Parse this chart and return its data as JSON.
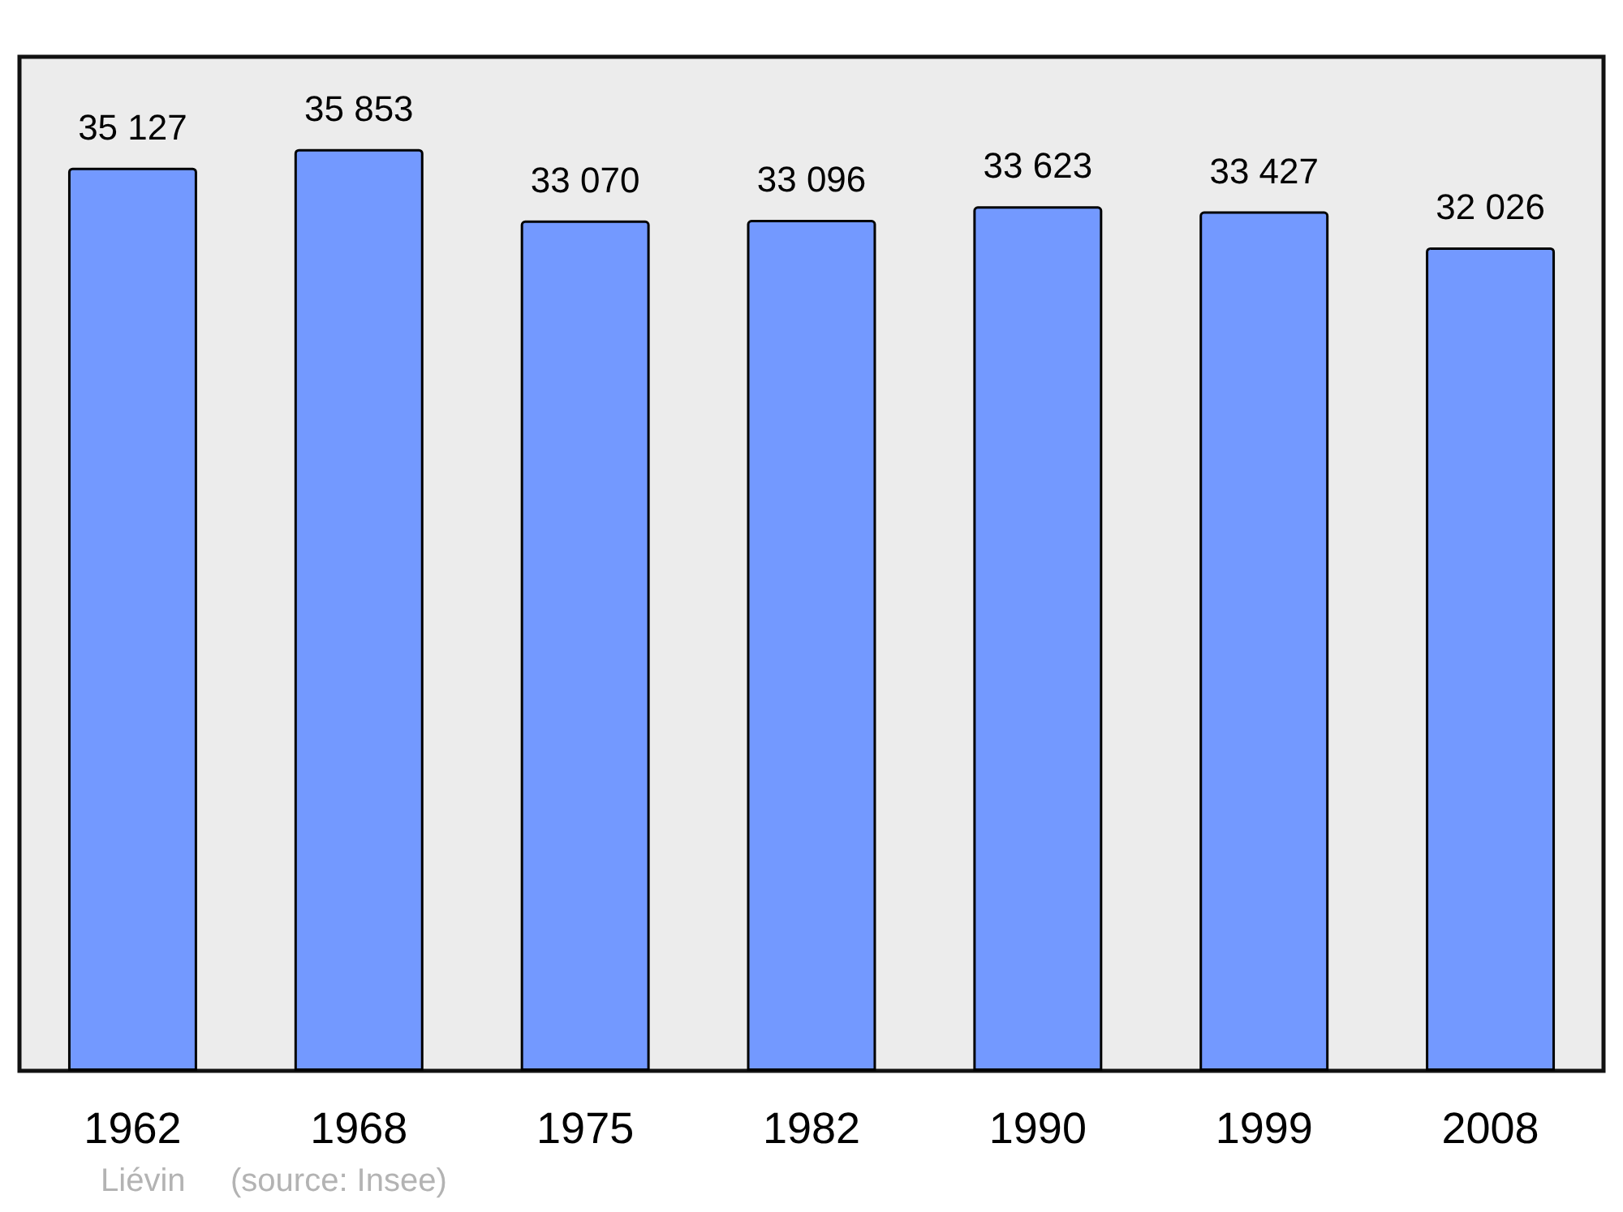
{
  "chart_data": {
    "type": "bar",
    "categories": [
      "1962",
      "1968",
      "1975",
      "1982",
      "1990",
      "1999",
      "2008"
    ],
    "values": [
      35127,
      35853,
      33070,
      33096,
      33623,
      33427,
      32026
    ],
    "value_labels": [
      "35 127",
      "35 853",
      "33 070",
      "33 096",
      "33 623",
      "33 427",
      "32 026"
    ],
    "color": "#7399ff",
    "annotations": [
      "Liévin",
      "(source: Insee)"
    ]
  }
}
